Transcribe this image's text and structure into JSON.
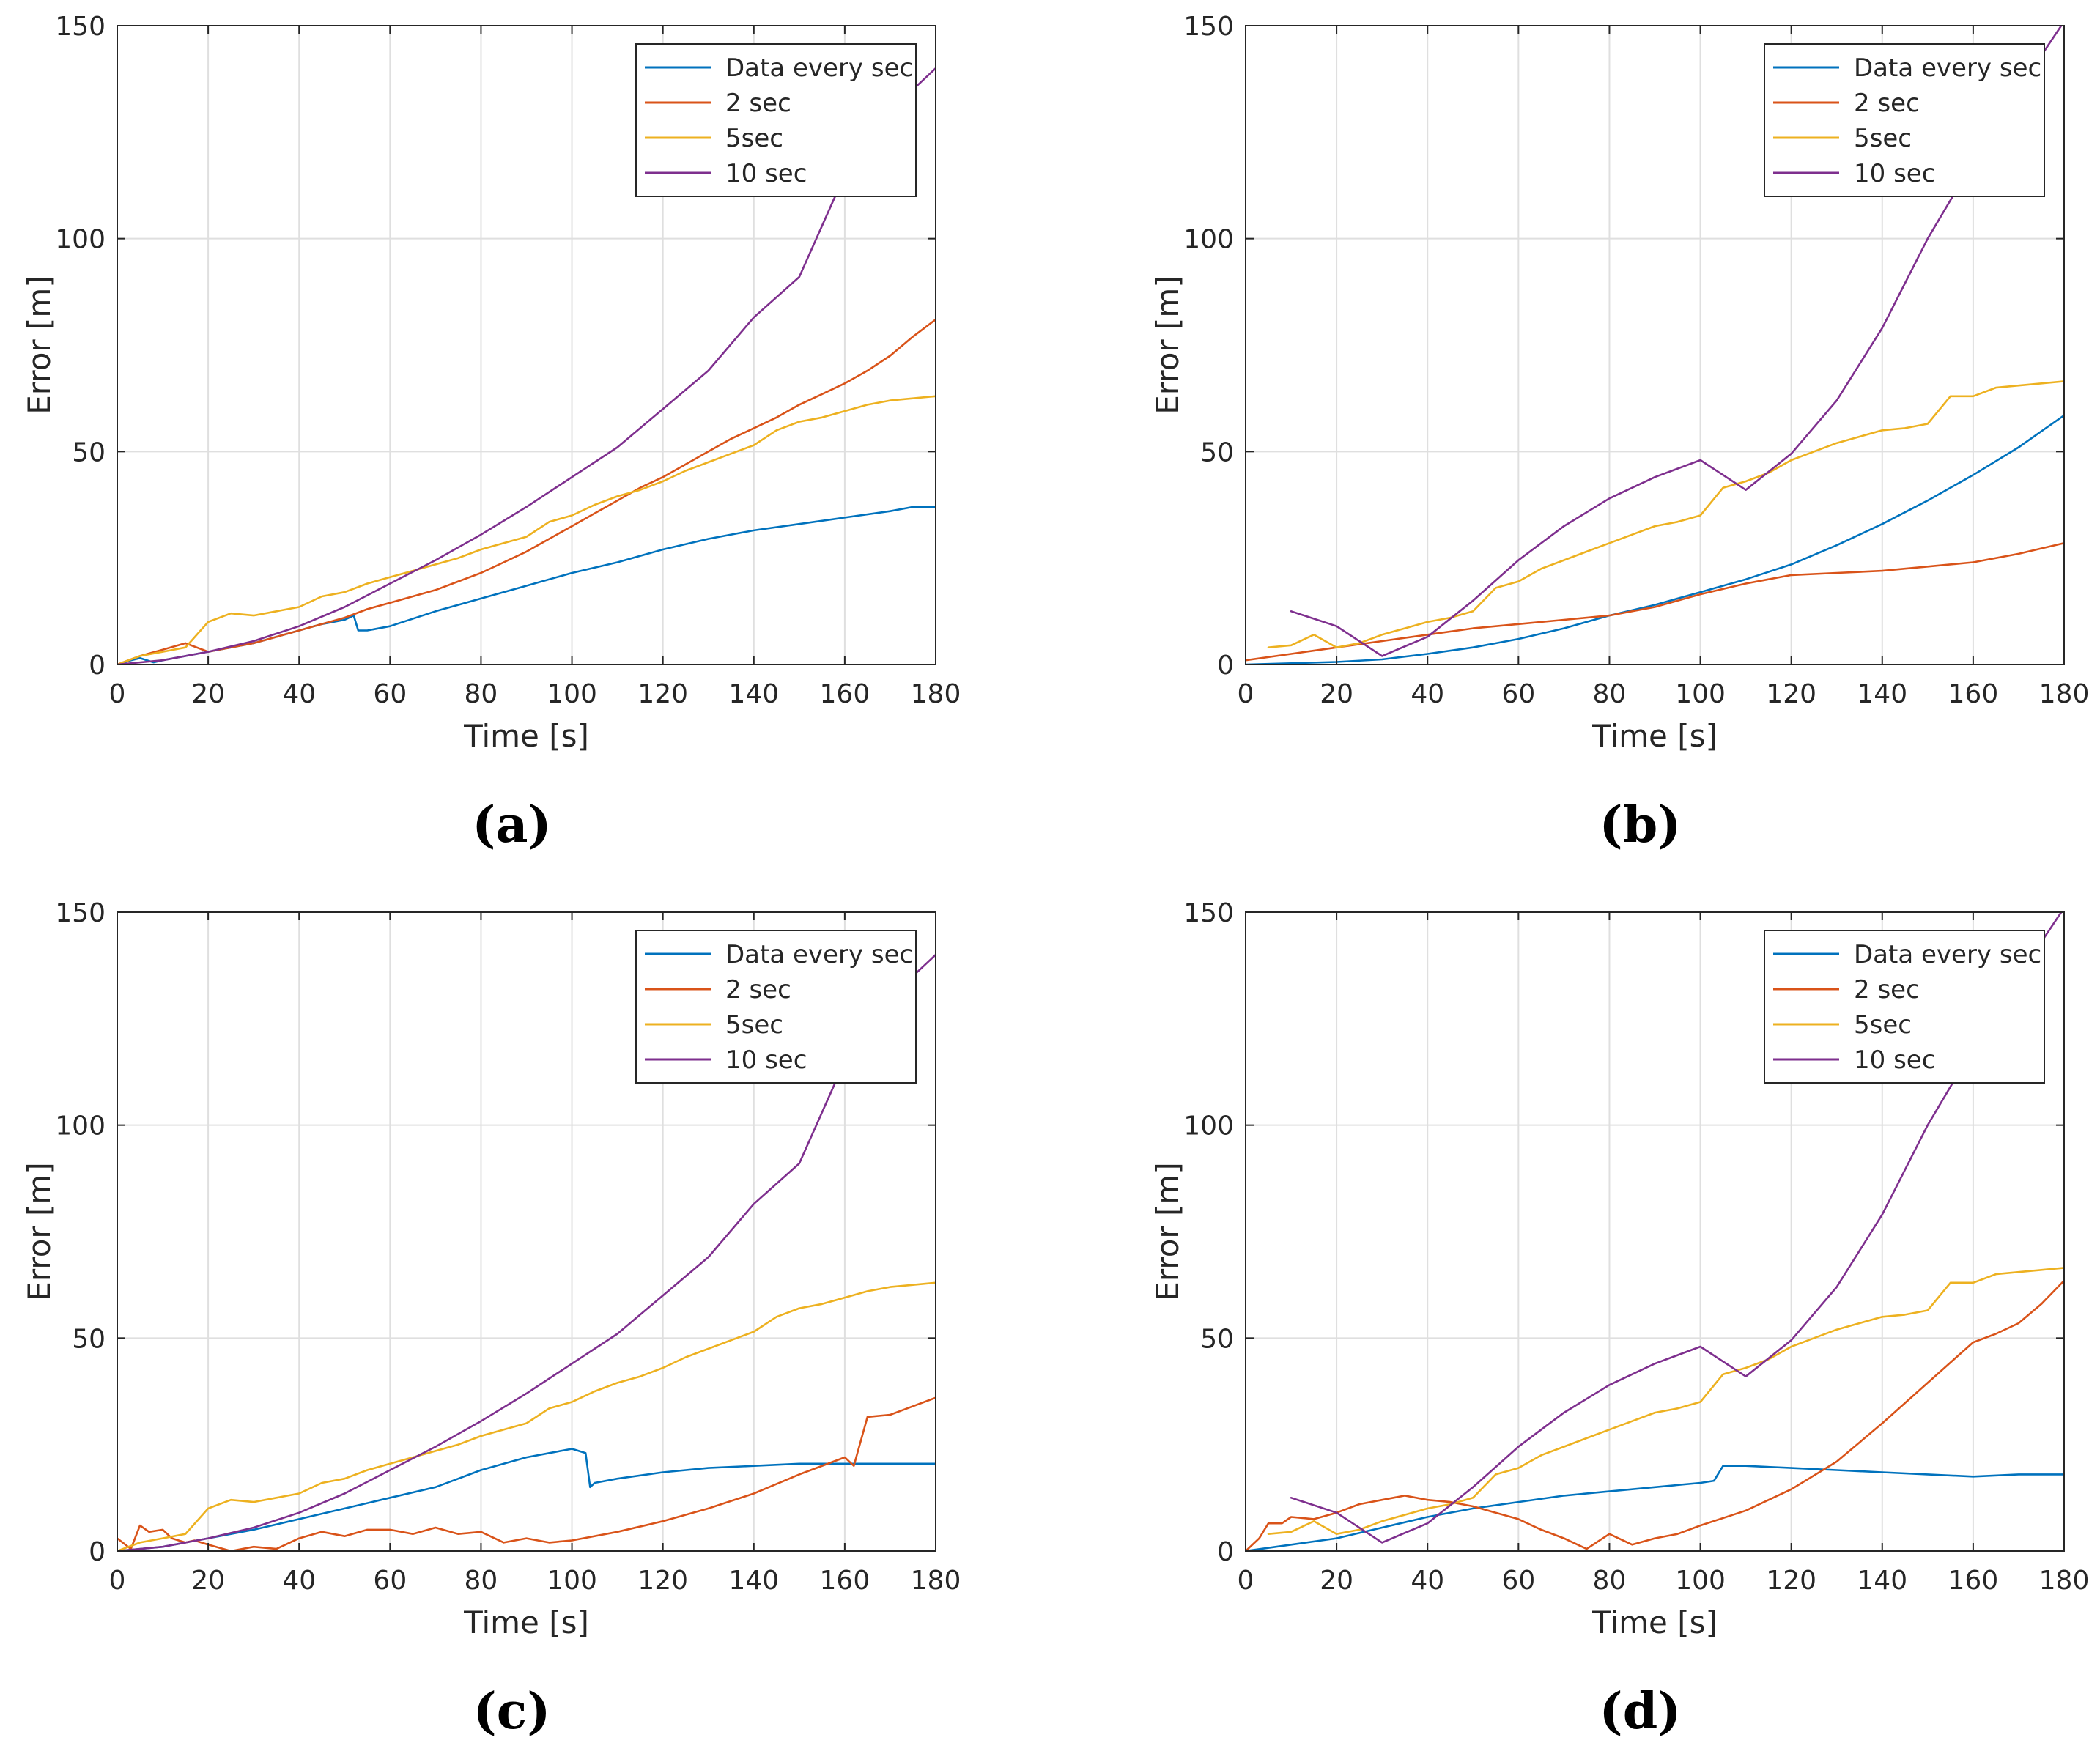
{
  "figure_colors": {
    "data_every_sec": "#0072BD",
    "two_sec": "#D95319",
    "five_sec": "#EDB120",
    "ten_sec": "#7E2F8E"
  },
  "chart_data": [
    {
      "type": "line",
      "panel_label": "(a)",
      "xlabel": "Time [s]",
      "ylabel": "Error [m]",
      "xlim": [
        0,
        180
      ],
      "ylim": [
        0,
        150
      ],
      "xticks": [
        "0",
        "20",
        "40",
        "60",
        "80",
        "100",
        "120",
        "140",
        "160",
        "180"
      ],
      "yticks": [
        "0",
        "50",
        "100",
        "150"
      ],
      "grid": true,
      "legend_position": "top-right",
      "series": [
        {
          "name": "Data every sec",
          "color": "#0072BD",
          "x": [
            0,
            3,
            5,
            8,
            10,
            15,
            20,
            25,
            30,
            35,
            40,
            45,
            50,
            52,
            53,
            55,
            60,
            70,
            80,
            90,
            100,
            110,
            120,
            130,
            140,
            150,
            160,
            170,
            175,
            180
          ],
          "y": [
            0,
            1,
            1.5,
            0.5,
            1,
            2,
            3,
            4,
            5,
            6.5,
            8,
            9.5,
            10.5,
            11.5,
            8,
            8,
            9,
            12.5,
            15.5,
            18.5,
            21.5,
            24,
            27,
            29.5,
            31.5,
            33,
            34.5,
            36,
            37,
            37
          ]
        },
        {
          "name": "2 sec",
          "color": "#D95319",
          "x": [
            0,
            5,
            10,
            15,
            20,
            25,
            30,
            35,
            40,
            45,
            50,
            55,
            60,
            65,
            70,
            75,
            80,
            85,
            90,
            95,
            100,
            105,
            110,
            115,
            120,
            125,
            130,
            135,
            140,
            145,
            150,
            155,
            160,
            165,
            170,
            175,
            180
          ],
          "y": [
            0,
            2,
            3.5,
            5,
            3,
            4,
            5,
            6.5,
            8,
            9.5,
            11,
            13,
            14.5,
            16,
            17.5,
            19.5,
            21.5,
            24,
            26.5,
            29.5,
            32.5,
            35.5,
            38.5,
            41.5,
            44,
            47,
            50,
            53,
            55.5,
            58,
            61,
            63.5,
            66,
            69,
            72.5,
            77,
            81
          ]
        },
        {
          "name": "5sec",
          "color": "#EDB120",
          "x": [
            0,
            5,
            10,
            15,
            20,
            25,
            30,
            35,
            40,
            45,
            50,
            55,
            60,
            65,
            70,
            75,
            80,
            85,
            90,
            95,
            100,
            105,
            110,
            115,
            120,
            125,
            130,
            135,
            140,
            145,
            150,
            155,
            160,
            165,
            170,
            175,
            180
          ],
          "y": [
            0,
            2,
            3,
            4,
            10,
            12,
            11.5,
            12.5,
            13.5,
            16,
            17,
            19,
            20.5,
            22,
            23.5,
            25,
            27,
            28.5,
            30,
            33.5,
            35,
            37.5,
            39.5,
            41,
            43,
            45.5,
            47.5,
            49.5,
            51.5,
            55,
            57,
            58,
            59.5,
            61,
            62,
            62.5,
            63
          ]
        },
        {
          "name": "10 sec",
          "color": "#7E2F8E",
          "x": [
            0,
            10,
            20,
            30,
            40,
            50,
            60,
            70,
            80,
            90,
            100,
            110,
            120,
            130,
            140,
            150,
            160,
            170,
            180
          ],
          "y": [
            0,
            1,
            3,
            5.5,
            9,
            13.5,
            19,
            24.5,
            30.5,
            37,
            44,
            51,
            60,
            69,
            81.5,
            91,
            115,
            130,
            140
          ]
        }
      ]
    },
    {
      "type": "line",
      "panel_label": "(b)",
      "xlabel": "Time [s]",
      "ylabel": "Error [m]",
      "xlim": [
        0,
        180
      ],
      "ylim": [
        0,
        150
      ],
      "xticks": [
        "0",
        "20",
        "40",
        "60",
        "80",
        "100",
        "120",
        "140",
        "160",
        "180"
      ],
      "yticks": [
        "0",
        "50",
        "100",
        "150"
      ],
      "grid": true,
      "legend_position": "top-right",
      "series": [
        {
          "name": "Data every sec",
          "color": "#0072BD",
          "x": [
            0,
            10,
            20,
            30,
            40,
            50,
            60,
            70,
            80,
            90,
            100,
            110,
            120,
            130,
            140,
            150,
            160,
            170,
            180
          ],
          "y": [
            0,
            0.3,
            0.6,
            1.2,
            2.5,
            4,
            6,
            8.5,
            11.5,
            14,
            17,
            20,
            23.5,
            28,
            33,
            38.5,
            44.5,
            51,
            58.5
          ]
        },
        {
          "name": "2 sec",
          "color": "#D95319",
          "x": [
            0,
            10,
            20,
            30,
            40,
            50,
            60,
            70,
            80,
            90,
            100,
            110,
            120,
            130,
            140,
            150,
            160,
            170,
            180
          ],
          "y": [
            1,
            2.5,
            4,
            5.5,
            7,
            8.5,
            9.5,
            10.5,
            11.5,
            13.5,
            16.5,
            19,
            21,
            21.5,
            22,
            23,
            24,
            26,
            28.5
          ]
        },
        {
          "name": "5sec",
          "color": "#EDB120",
          "x": [
            5,
            10,
            15,
            20,
            25,
            30,
            35,
            40,
            45,
            50,
            55,
            60,
            65,
            70,
            75,
            80,
            85,
            90,
            95,
            100,
            105,
            110,
            115,
            120,
            125,
            130,
            135,
            140,
            145,
            150,
            155,
            160,
            165,
            170,
            175,
            180
          ],
          "y": [
            4,
            4.5,
            7,
            4,
            5,
            7,
            8.5,
            10,
            11,
            12.5,
            18,
            19.5,
            22.5,
            24.5,
            26.5,
            28.5,
            30.5,
            32.5,
            33.5,
            35,
            41.5,
            43,
            45,
            48,
            50,
            52,
            53.5,
            55,
            55.5,
            56.5,
            63,
            63,
            65,
            65.5,
            66,
            66.5
          ]
        },
        {
          "name": "10 sec",
          "color": "#7E2F8E",
          "x": [
            10,
            20,
            30,
            40,
            50,
            60,
            70,
            80,
            90,
            100,
            110,
            120,
            130,
            140,
            150,
            160,
            170,
            180
          ],
          "y": [
            12.5,
            9,
            2,
            6.5,
            15,
            24.5,
            32.5,
            39,
            44,
            48,
            41,
            49.5,
            62,
            79,
            100,
            118,
            135,
            151
          ]
        }
      ]
    },
    {
      "type": "line",
      "panel_label": "(c)",
      "xlabel": "Time [s]",
      "ylabel": "Error [m]",
      "xlim": [
        0,
        180
      ],
      "ylim": [
        0,
        150
      ],
      "xticks": [
        "0",
        "20",
        "40",
        "60",
        "80",
        "100",
        "120",
        "140",
        "160",
        "180"
      ],
      "yticks": [
        "0",
        "50",
        "100",
        "150"
      ],
      "grid": true,
      "legend_position": "top-right",
      "series": [
        {
          "name": "Data every sec",
          "color": "#0072BD",
          "x": [
            0,
            10,
            20,
            30,
            40,
            50,
            60,
            70,
            75,
            80,
            85,
            90,
            95,
            100,
            103,
            104,
            105,
            110,
            120,
            130,
            140,
            150,
            160,
            170,
            180
          ],
          "y": [
            0,
            1,
            3,
            5,
            7.5,
            10,
            12.5,
            15,
            17,
            19,
            20.5,
            22,
            23,
            24,
            23,
            15,
            16,
            17,
            18.5,
            19.5,
            20,
            20.5,
            20.5,
            20.5,
            20.5
          ]
        },
        {
          "name": "2 sec",
          "color": "#D95319",
          "x": [
            0,
            3,
            5,
            7,
            10,
            12,
            15,
            17,
            20,
            25,
            30,
            35,
            40,
            45,
            50,
            55,
            60,
            65,
            70,
            75,
            80,
            85,
            90,
            95,
            100,
            110,
            120,
            130,
            140,
            150,
            160,
            162,
            165,
            170,
            175,
            180
          ],
          "y": [
            3,
            0.5,
            6,
            4.5,
            5,
            3,
            2,
            2.5,
            1.5,
            0,
            1,
            0.5,
            3,
            4.5,
            3.5,
            5,
            5,
            4,
            5.5,
            4,
            4.5,
            2,
            3,
            2,
            2.5,
            4.5,
            7,
            10,
            13.5,
            18,
            22,
            20,
            31.5,
            32,
            34,
            36
          ]
        },
        {
          "name": "5sec",
          "color": "#EDB120",
          "x": [
            0,
            5,
            10,
            15,
            20,
            25,
            30,
            35,
            40,
            45,
            50,
            55,
            60,
            65,
            70,
            75,
            80,
            85,
            90,
            95,
            100,
            105,
            110,
            115,
            120,
            125,
            130,
            135,
            140,
            145,
            150,
            155,
            160,
            165,
            170,
            175,
            180
          ],
          "y": [
            0,
            2,
            3,
            4,
            10,
            12,
            11.5,
            12.5,
            13.5,
            16,
            17,
            19,
            20.5,
            22,
            23.5,
            25,
            27,
            28.5,
            30,
            33.5,
            35,
            37.5,
            39.5,
            41,
            43,
            45.5,
            47.5,
            49.5,
            51.5,
            55,
            57,
            58,
            59.5,
            61,
            62,
            62.5,
            63
          ]
        },
        {
          "name": "10 sec",
          "color": "#7E2F8E",
          "x": [
            0,
            10,
            20,
            30,
            40,
            50,
            60,
            70,
            80,
            90,
            100,
            110,
            120,
            130,
            140,
            150,
            160,
            170,
            180
          ],
          "y": [
            0,
            1,
            3,
            5.5,
            9,
            13.5,
            19,
            24.5,
            30.5,
            37,
            44,
            51,
            60,
            69,
            81.5,
            91,
            115,
            130,
            140
          ]
        }
      ]
    },
    {
      "type": "line",
      "panel_label": "(d)",
      "xlabel": "Time [s]",
      "ylabel": "Error [m]",
      "xlim": [
        0,
        180
      ],
      "ylim": [
        0,
        150
      ],
      "xticks": [
        "0",
        "20",
        "40",
        "60",
        "80",
        "100",
        "120",
        "140",
        "160",
        "180"
      ],
      "yticks": [
        "0",
        "50",
        "100",
        "150"
      ],
      "grid": true,
      "legend_position": "top-right",
      "series": [
        {
          "name": "Data every sec",
          "color": "#0072BD",
          "x": [
            0,
            10,
            20,
            30,
            40,
            50,
            60,
            70,
            80,
            90,
            100,
            103,
            105,
            110,
            120,
            130,
            140,
            150,
            160,
            170,
            180
          ],
          "y": [
            0,
            1.5,
            3,
            5.5,
            8,
            10,
            11.5,
            13,
            14,
            15,
            16,
            16.5,
            20,
            20,
            19.5,
            19,
            18.5,
            18,
            17.5,
            18,
            18
          ]
        },
        {
          "name": "2 sec",
          "color": "#D95319",
          "x": [
            0,
            3,
            5,
            8,
            10,
            15,
            20,
            25,
            30,
            35,
            40,
            45,
            50,
            55,
            60,
            65,
            70,
            75,
            80,
            85,
            90,
            95,
            100,
            110,
            120,
            130,
            140,
            150,
            160,
            165,
            170,
            175,
            180
          ],
          "y": [
            0,
            3,
            6.5,
            6.5,
            8,
            7.5,
            9,
            11,
            12,
            13,
            12,
            11.5,
            10.5,
            9,
            7.5,
            5,
            3,
            0.5,
            4,
            1.5,
            3,
            4,
            6,
            9.5,
            14.5,
            21,
            30,
            39.5,
            49,
            51,
            53.5,
            58,
            63.5
          ]
        },
        {
          "name": "5sec",
          "color": "#EDB120",
          "x": [
            5,
            10,
            15,
            20,
            25,
            30,
            35,
            40,
            45,
            50,
            55,
            60,
            65,
            70,
            75,
            80,
            85,
            90,
            95,
            100,
            105,
            110,
            115,
            120,
            125,
            130,
            135,
            140,
            145,
            150,
            155,
            160,
            165,
            170,
            175,
            180
          ],
          "y": [
            4,
            4.5,
            7,
            4,
            5,
            7,
            8.5,
            10,
            11,
            12.5,
            18,
            19.5,
            22.5,
            24.5,
            26.5,
            28.5,
            30.5,
            32.5,
            33.5,
            35,
            41.5,
            43,
            45,
            48,
            50,
            52,
            53.5,
            55,
            55.5,
            56.5,
            63,
            63,
            65,
            65.5,
            66,
            66.5
          ]
        },
        {
          "name": "10 sec",
          "color": "#7E2F8E",
          "x": [
            10,
            20,
            30,
            40,
            50,
            60,
            70,
            80,
            90,
            100,
            110,
            120,
            130,
            140,
            150,
            160,
            170,
            180
          ],
          "y": [
            12.5,
            9,
            2,
            6.5,
            15,
            24.5,
            32.5,
            39,
            44,
            48,
            41,
            49.5,
            62,
            79,
            100,
            118,
            135,
            151
          ]
        }
      ]
    }
  ]
}
